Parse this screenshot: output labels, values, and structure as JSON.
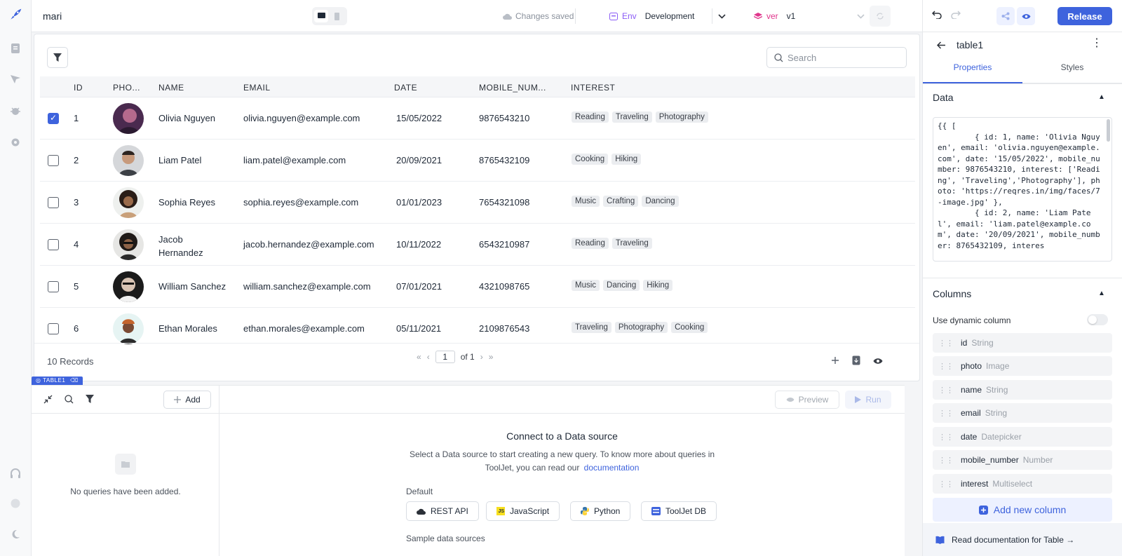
{
  "header": {
    "app_name": "mari",
    "changes_saved": "Changes saved",
    "env_label": "Env",
    "env_value": "Development",
    "ver_label": "ver",
    "ver_value": "v1",
    "release": "Release"
  },
  "table": {
    "search_placeholder": "Search",
    "columns": [
      "ID",
      "PHO...",
      "NAME",
      "EMAIL",
      "DATE",
      "MOBILE_NUM...",
      "INTEREST"
    ],
    "rows": [
      {
        "checked": true,
        "id": "1",
        "name": "Olivia Nguyen",
        "email": "olivia.nguyen@example.com",
        "date": "15/05/2022",
        "mobile": "9876543210",
        "interests": [
          "Reading",
          "Traveling",
          "Photography"
        ]
      },
      {
        "checked": false,
        "id": "2",
        "name": "Liam Patel",
        "email": "liam.patel@example.com",
        "date": "20/09/2021",
        "mobile": "8765432109",
        "interests": [
          "Cooking",
          "Hiking"
        ]
      },
      {
        "checked": false,
        "id": "3",
        "name": "Sophia Reyes",
        "email": "sophia.reyes@example.com",
        "date": "01/01/2023",
        "mobile": "7654321098",
        "interests": [
          "Music",
          "Crafting",
          "Dancing"
        ]
      },
      {
        "checked": false,
        "id": "4",
        "name": "Jacob Hernandez",
        "email": "jacob.hernandez@example.com",
        "date": "10/11/2022",
        "mobile": "6543210987",
        "interests": [
          "Reading",
          "Traveling"
        ]
      },
      {
        "checked": false,
        "id": "5",
        "name": "William Sanchez",
        "email": "william.sanchez@example.com",
        "date": "07/01/2021",
        "mobile": "4321098765",
        "interests": [
          "Music",
          "Dancing",
          "Hiking"
        ]
      },
      {
        "checked": false,
        "id": "6",
        "name": "Ethan Morales",
        "email": "ethan.morales@example.com",
        "date": "05/11/2021",
        "mobile": "2109876543",
        "interests": [
          "Traveling",
          "Photography",
          "Cooking"
        ]
      }
    ],
    "records": "10 Records",
    "page": "1",
    "of_pages": "of 1",
    "widget_label": "TABLE1"
  },
  "query_panel": {
    "add": "Add",
    "empty": "No queries have been added.",
    "preview": "Preview",
    "run": "Run",
    "connect_title": "Connect to a Data source",
    "connect_desc1": "Select a Data source to start creating a new query. To know more about queries in",
    "connect_desc2": "ToolJet, you can read our",
    "doc_link": "documentation",
    "default_label": "Default",
    "sources": [
      "REST API",
      "JavaScript",
      "Python",
      "ToolJet DB"
    ],
    "sample_label": "Sample data sources"
  },
  "right_panel": {
    "component_name": "table1",
    "tab_properties": "Properties",
    "tab_styles": "Styles",
    "data_section": "Data",
    "code": "{{ [\n        { id: 1, name: 'Olivia Nguyen', email: 'olivia.nguyen@example.com', date: '15/05/2022', mobile_number: 9876543210, interest: ['Reading', 'Traveling','Photography'], photo: 'https://reqres.in/img/faces/7-image.jpg' },\n        { id: 2, name: 'Liam Patel', email: 'liam.patel@example.com', date: '20/09/2021', mobile_number: 8765432109, interes",
    "columns_section": "Columns",
    "dynamic_column": "Use dynamic column",
    "columns": [
      {
        "name": "id",
        "type": "String"
      },
      {
        "name": "photo",
        "type": "Image"
      },
      {
        "name": "name",
        "type": "String"
      },
      {
        "name": "email",
        "type": "String"
      },
      {
        "name": "date",
        "type": "Datepicker"
      },
      {
        "name": "mobile_number",
        "type": "Number"
      },
      {
        "name": "interest",
        "type": "Multiselect"
      }
    ],
    "add_column": "Add new column",
    "read_doc": "Read documentation for Table →"
  },
  "colors": {
    "accent": "#3e63dd",
    "env_purple": "#8b5cf6",
    "ver_pink": "#e0368c"
  }
}
